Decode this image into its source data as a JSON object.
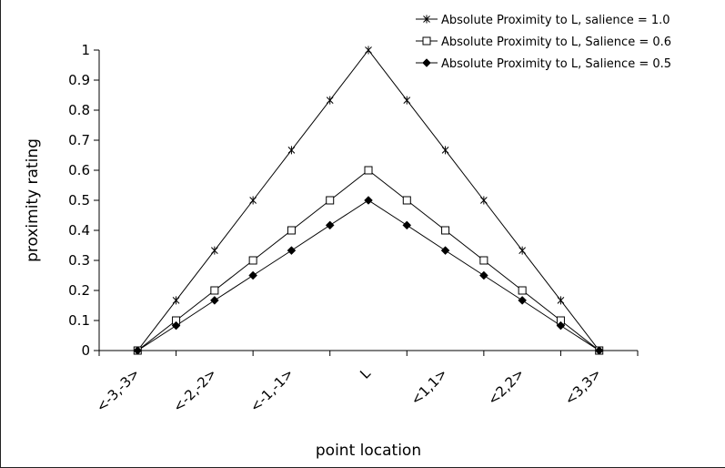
{
  "chart_data": {
    "type": "line",
    "title": "",
    "xlabel": "point location",
    "ylabel": "proximity rating",
    "categories": [
      "<-3,-3>",
      "<-2,-2>",
      "<-1,-1>",
      "L",
      "<1,1>",
      "<2,2>",
      "<3,3>"
    ],
    "x": [
      -3,
      -2.5,
      -2,
      -1.5,
      -1,
      -0.5,
      0,
      0.5,
      1,
      1.5,
      2,
      2.5,
      3
    ],
    "ylim": [
      0,
      1
    ],
    "yticks": [
      "0",
      "0.1",
      "0.2",
      "0.3",
      "0.4",
      "0.5",
      "0.6",
      "0.7",
      "0.8",
      "0.9",
      "1"
    ],
    "grid": false,
    "legend_position": "top-right",
    "series": [
      {
        "name": "Absolute Proximity to L, salience = 1.0",
        "marker": "star",
        "values": [
          0,
          0.167,
          0.333,
          0.5,
          0.667,
          0.833,
          1.0,
          0.833,
          0.667,
          0.5,
          0.333,
          0.167,
          0
        ]
      },
      {
        "name": "Absolute Proximity to L, Salience = 0.6",
        "marker": "square",
        "values": [
          0,
          0.1,
          0.2,
          0.3,
          0.4,
          0.5,
          0.6,
          0.5,
          0.4,
          0.3,
          0.2,
          0.1,
          0
        ]
      },
      {
        "name": "Absolute Proximity to L, Salience = 0.5",
        "marker": "diamond",
        "values": [
          0,
          0.083,
          0.167,
          0.25,
          0.333,
          0.417,
          0.5,
          0.417,
          0.333,
          0.25,
          0.167,
          0.083,
          0
        ]
      }
    ]
  }
}
